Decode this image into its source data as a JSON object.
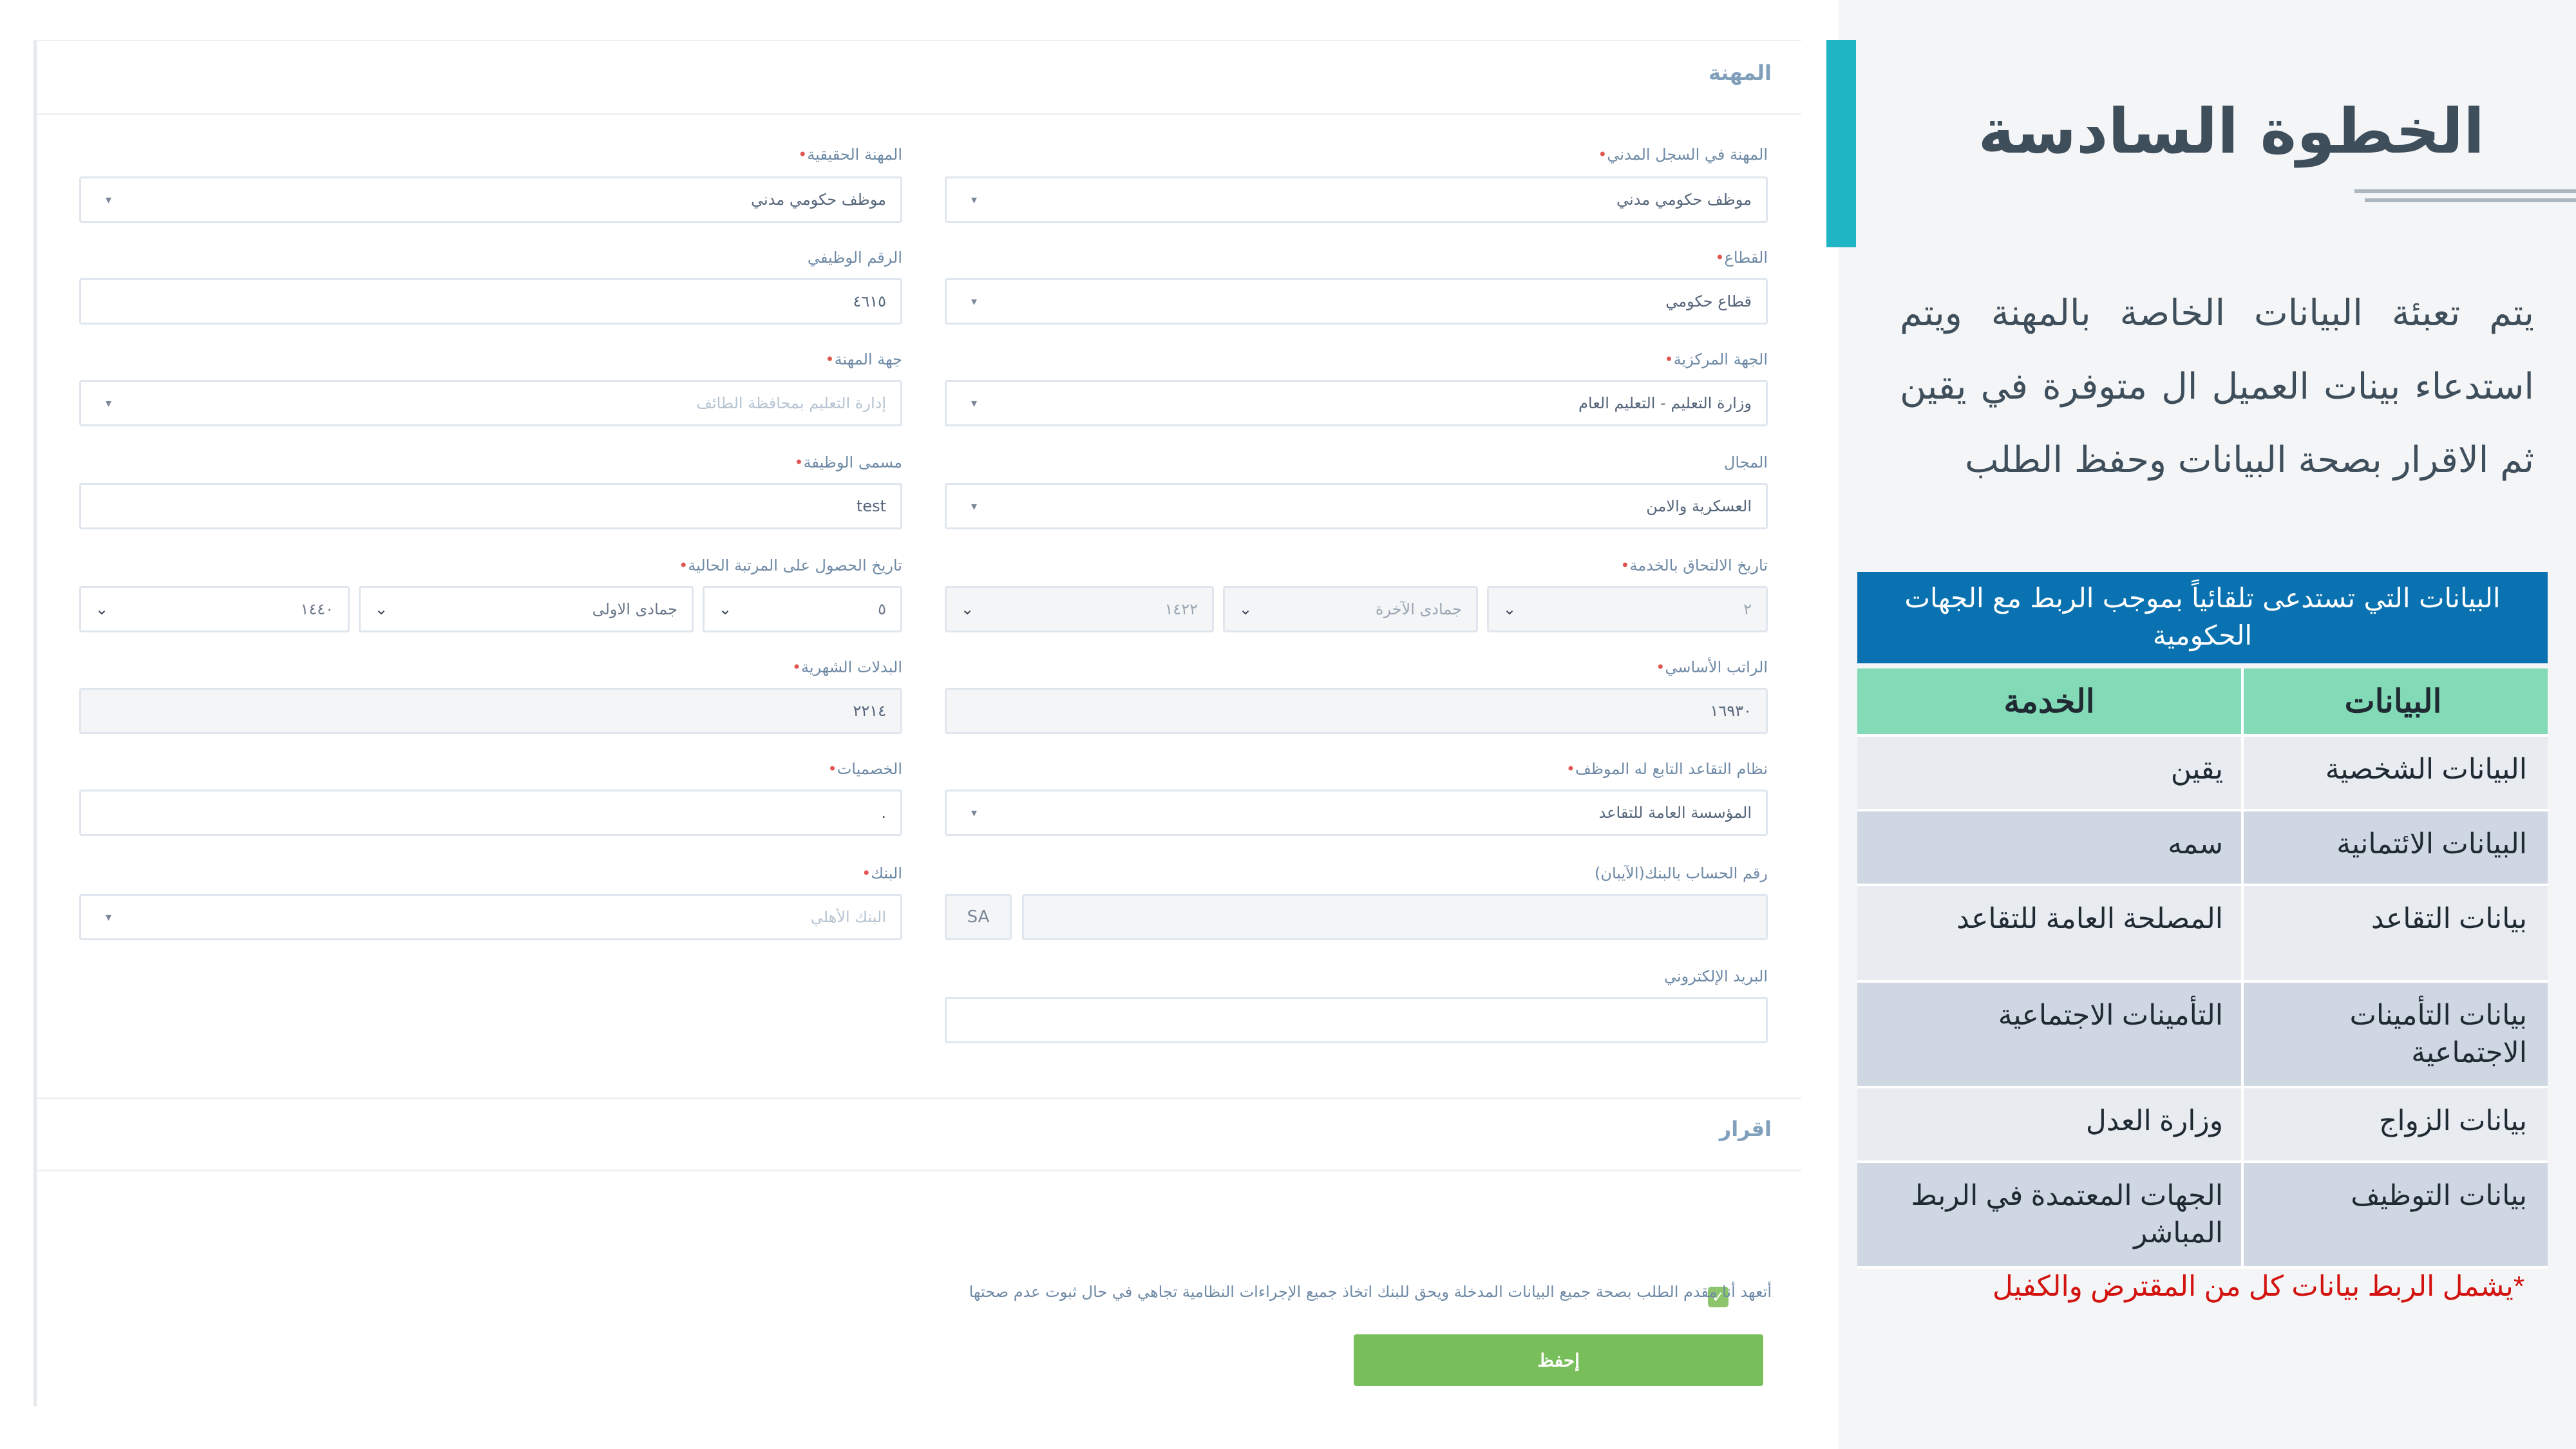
{
  "form": {
    "section_title": "المهنة",
    "declaration_title": "اقرار",
    "fields": {
      "civil_occupation": {
        "label": "المهنة في السجل المدني",
        "value": "موظف حكومي مدني"
      },
      "actual_occupation": {
        "label": "المهنة الحقيقية",
        "value": "موظف حكومي مدني"
      },
      "sector": {
        "label": "القطاع",
        "value": "قطاع حكومي"
      },
      "employee_number": {
        "label": "الرقم الوظيفي",
        "value": "٤٦١٥"
      },
      "central_authority": {
        "label": "الجهة المركزية",
        "value": "وزارة التعليم - التعليم العام"
      },
      "employer": {
        "label": "جهة المهنة",
        "value": "إدارة التعليم بمحافظة الطائف"
      },
      "field": {
        "label": "المجال",
        "value": "العسكرية والامن"
      },
      "job_title": {
        "label": "مسمى الوظيفة",
        "value": "test"
      },
      "service_join_date": {
        "label": "تاريخ الالتحاق بالخدمة",
        "day": "٢",
        "month": "جمادى الآخرة",
        "year": "١٤٢٢"
      },
      "rank_date": {
        "label": "تاريخ الحصول على المرتبة الحالية",
        "day": "٥",
        "month": "جمادى الاولى",
        "year": "١٤٤٠"
      },
      "basic_salary": {
        "label": "الراتب الأساسي",
        "value": "١٦٩٣٠"
      },
      "allowances": {
        "label": "البدلات الشهرية",
        "value": "٢٢١٤"
      },
      "retirement_system": {
        "label": "نظام التقاعد التابع له الموظف",
        "value": "المؤسسة العامة للتقاعد"
      },
      "deductions": {
        "label": "الخصميات",
        "value": "."
      },
      "iban": {
        "label": "رقم الحساب بالبنك(الآيبان)",
        "prefix": "SA",
        "value": ""
      },
      "bank": {
        "label": "البنك",
        "value": "البنك الأهلي"
      },
      "email": {
        "label": "البريد الإلكتروني",
        "value": ""
      }
    },
    "declaration_text": "أتعهد أنا مقدم الطلب بصحة جميع البيانات المدخلة ويحق للبنك اتخاذ جميع الإجراءات النظامية تجاهي في حال ثبوت عدم صحتها",
    "save_label": "إحفظ"
  },
  "panel": {
    "title": "الخطوة السادسة",
    "description": "يتم تعبئة البيانات الخاصة بالمهنة ويتم استدعاء بينات العميل ال متوفرة في يقين ثم الاقرار بصحة البيانات وحفظ الطلب",
    "table": {
      "caption": "البيانات التي تستدعى تلقائياً بموجب الربط مع الجهات الحكومية",
      "headers": {
        "service": "الخدمة",
        "data": "البيانات"
      },
      "rows": [
        {
          "service": "يقين",
          "data": "البيانات الشخصية"
        },
        {
          "service": "سمه",
          "data": "البيانات الائتمانية"
        },
        {
          "service": "المصلحة العامة للتقاعد",
          "data": "بيانات التقاعد"
        },
        {
          "service": "التأمينات الاجتماعية",
          "data": "بيانات التأمينات الاجتماعية"
        },
        {
          "service": "وزارة العدل",
          "data": "بيانات الزواج"
        },
        {
          "service": "الجهات المعتمدة في الربط المباشر",
          "data": "بيانات التوظيف"
        }
      ]
    },
    "footnote": "*يشمل الربط بيانات كل من المقترض والكفيل"
  },
  "colors": {
    "accent": "#1fb5c4",
    "caption_bg": "#0a72b0",
    "header_bg": "#82dab7",
    "save_button": "#78be5a",
    "footnote": "#d3130f"
  }
}
